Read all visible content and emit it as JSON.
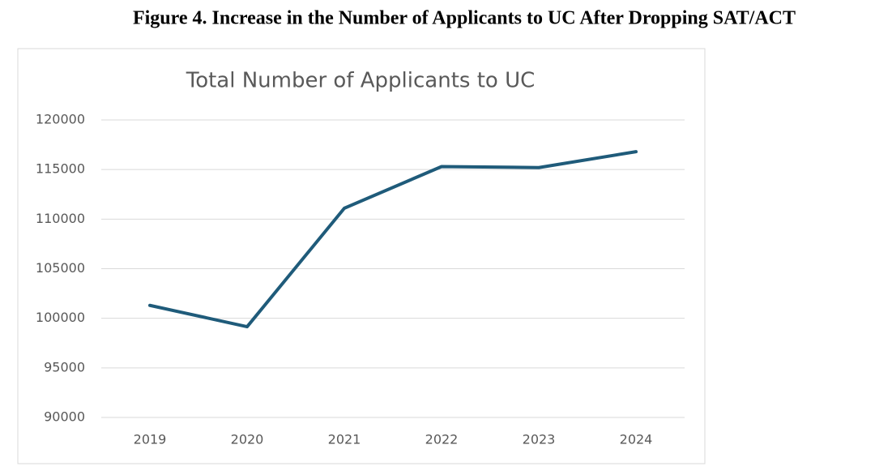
{
  "caption": "Figure 4. Increase in the Number of Applicants to UC After Dropping SAT/ACT",
  "chart_data": {
    "type": "line",
    "title": "Total Number of Applicants to UC",
    "categories": [
      "2019",
      "2020",
      "2021",
      "2022",
      "2023",
      "2024"
    ],
    "values": [
      101300,
      99150,
      111100,
      115300,
      115200,
      116800
    ],
    "color": "#1f5b7a",
    "ylim": [
      90000,
      120000
    ],
    "yticks": [
      90000,
      95000,
      100000,
      105000,
      110000,
      115000,
      120000
    ],
    "grid": true
  }
}
